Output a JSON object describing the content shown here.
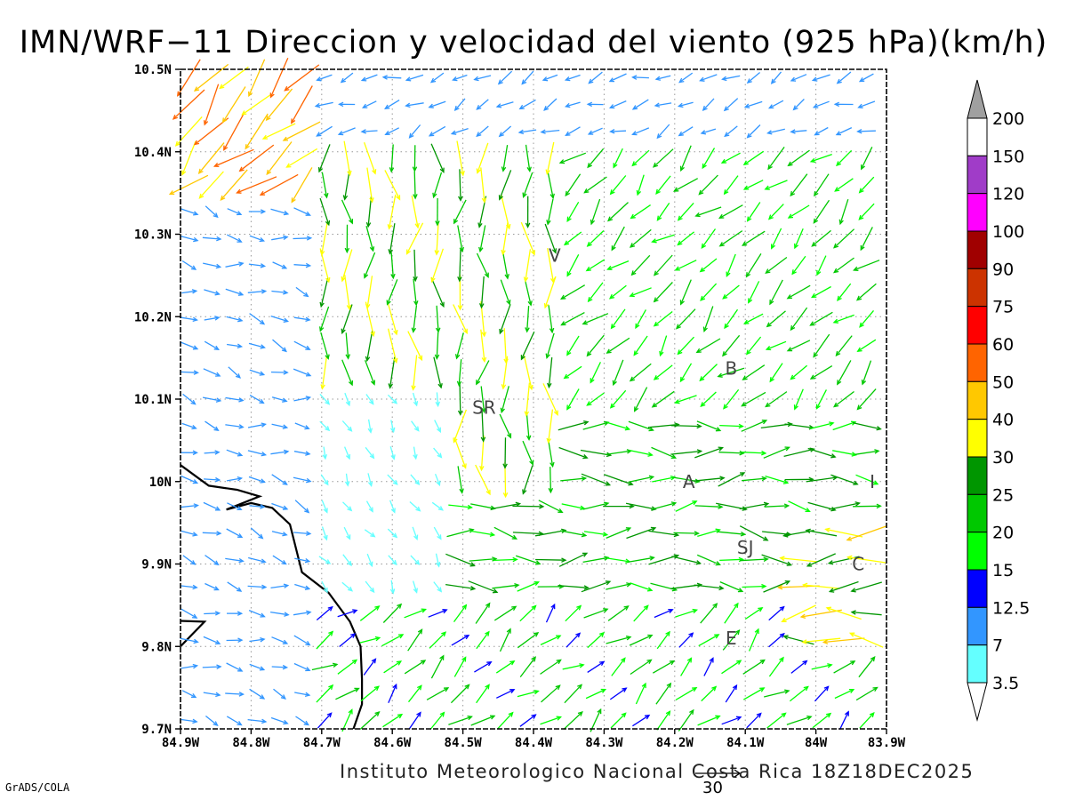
{
  "title": "IMN/WRF−11 Direccion y velocidad del viento (925 hPa)(km/h)",
  "footer": "Instituto Meteorologico Nacional Costa Rica 18Z18DEC2025",
  "software_label": "GrADS/COLA",
  "reference_vector": {
    "label": "30",
    "speed": 30
  },
  "map": {
    "lon_range": [
      -84.9,
      -83.9
    ],
    "lat_range": [
      9.7,
      10.5
    ],
    "lon_ticks": [
      "84.9W",
      "84.8W",
      "84.7W",
      "84.6W",
      "84.5W",
      "84.4W",
      "84.3W",
      "84.2W",
      "84.1W",
      "84W",
      "83.9W"
    ],
    "lat_ticks": [
      "9.7N",
      "9.8N",
      "9.9N",
      "10N",
      "10.1N",
      "10.2N",
      "10.3N",
      "10.4N",
      "10.5N"
    ],
    "grid": "dotted"
  },
  "station_labels": [
    {
      "text": "V",
      "lon": -84.37,
      "lat": 10.274
    },
    {
      "text": "SR",
      "lon": -84.47,
      "lat": 10.09
    },
    {
      "text": "B",
      "lon": -84.12,
      "lat": 10.137
    },
    {
      "text": "A",
      "lon": -84.18,
      "lat": 10.0
    },
    {
      "text": "SJ",
      "lon": -84.1,
      "lat": 9.92
    },
    {
      "text": "C",
      "lon": -83.94,
      "lat": 9.9
    },
    {
      "text": "E",
      "lon": -84.12,
      "lat": 9.81
    },
    {
      "text": "I",
      "lon": -83.92,
      "lat": 10.0
    }
  ],
  "colorbar": {
    "labels": [
      "200",
      "150",
      "120",
      "100",
      "90",
      "75",
      "60",
      "50",
      "40",
      "30",
      "25",
      "20",
      "15",
      "12.5",
      "7",
      "3.5"
    ],
    "colors": [
      "#ffffff",
      "#a03cc8",
      "#ff00ff",
      "#a00000",
      "#cc3300",
      "#ff0000",
      "#ff6400",
      "#ffc800",
      "#ffff00",
      "#009600",
      "#00c800",
      "#00ff00",
      "#0000ff",
      "#3296ff",
      "#64ffff"
    ],
    "triangle_top_color": "#a0a0a0",
    "triangle_bottom_color": "#ffffff"
  },
  "legend_key": {
    "speeds_kmh": [
      3.5,
      7,
      12.5,
      15,
      20,
      25,
      30,
      40,
      50,
      60,
      75,
      90,
      100,
      120,
      150,
      200
    ]
  },
  "chart_data": {
    "type": "vector_field",
    "title": "IMN/WRF−11 Direccion y velocidad del viento (925 hPa)(km/h)",
    "variable": "wind at 925 hPa",
    "units": "km/h",
    "valid_time": "18Z18DEC2025",
    "regions": [
      {
        "area": "northwest corner (84.9W-84.7W, 10.35N-10.5N)",
        "direction": "from NE",
        "speed_kmh": 45
      },
      {
        "area": "north band (84.7W-83.9W, 10.4N-10.5N)",
        "direction": "from NE/E",
        "speed_kmh": 10
      },
      {
        "area": "west / Gulf of Nicoya side (84.9W-84.7W, 9.7N-10.3N)",
        "direction": "from W/NW",
        "speed_kmh": 10
      },
      {
        "area": "western interior (84.75W-84.5W, 9.85N-10.1N)",
        "direction": "from NW",
        "speed_kmh": 5
      },
      {
        "area": "San Ramon corridor (84.6W-84.35W, 10.0N-10.3N)",
        "direction": "from N",
        "speed_kmh": 28
      },
      {
        "area": "Central Valley (84.4W-84.0W, 9.9N-10.0N)",
        "direction": "from W",
        "speed_kmh": 24
      },
      {
        "area": "north-central (84.3W-83.9W, 10.1N-10.3N)",
        "direction": "from NE",
        "speed_kmh": 20
      },
      {
        "area": "east near C (84.05W-83.9W, 9.8N-9.95N)",
        "direction": "from E",
        "speed_kmh": 35
      },
      {
        "area": "south (84.4W-84.0W, 9.7N-9.85N)",
        "direction": "from SW",
        "speed_kmh": 18
      }
    ],
    "max_speed_kmh": 55,
    "xlabel": "",
    "ylabel": ""
  }
}
